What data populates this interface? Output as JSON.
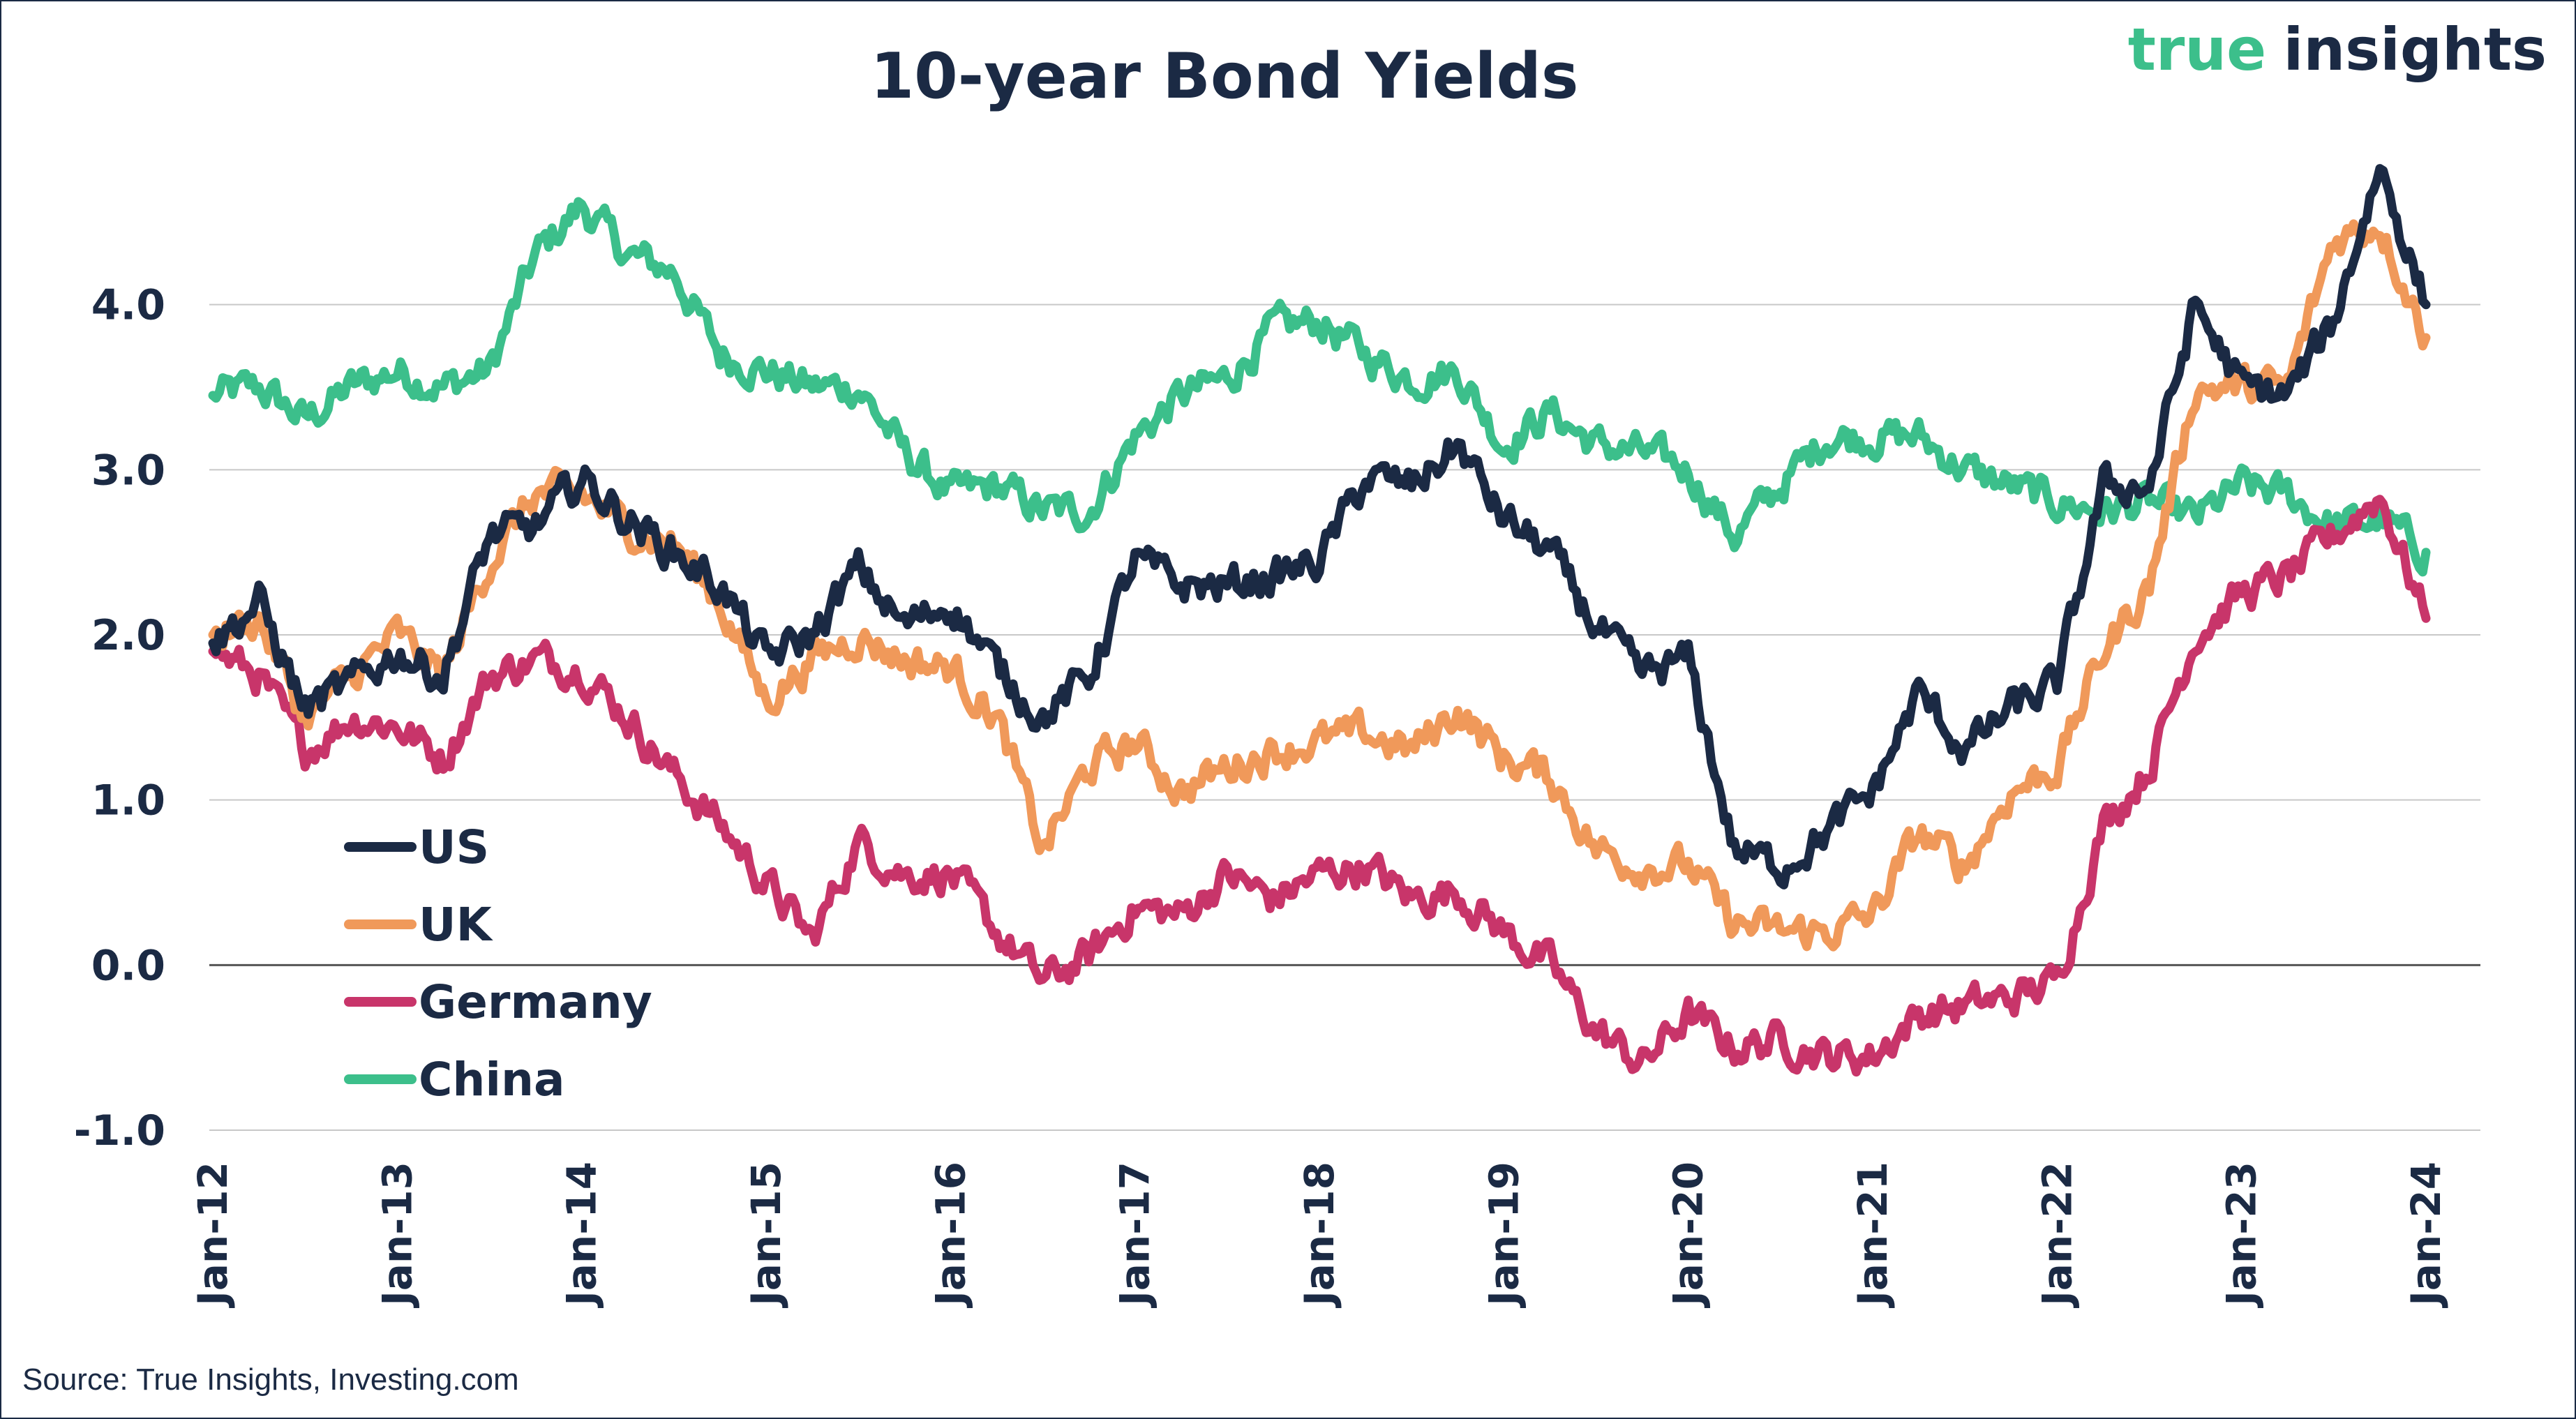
{
  "brand": {
    "part1": "true",
    "part2": "insights"
  },
  "source": "Source: True Insights, Investing.com",
  "chart_data": {
    "type": "line",
    "title": "10-year Bond Yields",
    "xlabel": "",
    "ylabel": "",
    "ylim": [
      -1.0,
      5.0
    ],
    "yticks": [
      -1.0,
      0.0,
      1.0,
      2.0,
      3.0,
      4.0
    ],
    "ytick_labels": [
      "-1.0",
      "0.0",
      "1.0",
      "2.0",
      "3.0",
      "4.0"
    ],
    "xlim": [
      "2012-01",
      "2024-01"
    ],
    "xtick_labels": [
      "Jan-12",
      "Jan-13",
      "Jan-14",
      "Jan-15",
      "Jan-16",
      "Jan-17",
      "Jan-18",
      "Jan-19",
      "Jan-20",
      "Jan-21",
      "Jan-22",
      "Jan-23",
      "Jan-24"
    ],
    "grid": true,
    "legend_position": "bottom-left",
    "x": [
      "2012-01",
      "2012-04",
      "2012-07",
      "2012-10",
      "2013-01",
      "2013-04",
      "2013-07",
      "2013-10",
      "2014-01",
      "2014-04",
      "2014-07",
      "2014-10",
      "2015-01",
      "2015-04",
      "2015-07",
      "2015-10",
      "2016-01",
      "2016-04",
      "2016-07",
      "2016-10",
      "2017-01",
      "2017-04",
      "2017-07",
      "2017-10",
      "2018-01",
      "2018-04",
      "2018-07",
      "2018-10",
      "2019-01",
      "2019-04",
      "2019-07",
      "2019-10",
      "2020-01",
      "2020-04",
      "2020-07",
      "2020-10",
      "2021-01",
      "2021-04",
      "2021-07",
      "2021-10",
      "2022-01",
      "2022-04",
      "2022-07",
      "2022-10",
      "2023-01",
      "2023-04",
      "2023-07",
      "2023-10",
      "2024-01"
    ],
    "series": [
      {
        "name": "US",
        "color": "#1b2a44",
        "values": [
          1.95,
          2.2,
          1.55,
          1.7,
          1.9,
          1.75,
          2.6,
          2.65,
          2.95,
          2.7,
          2.5,
          2.3,
          1.85,
          2.0,
          2.4,
          2.05,
          2.2,
          1.8,
          1.5,
          1.75,
          2.45,
          2.3,
          2.3,
          2.35,
          2.45,
          2.95,
          2.9,
          3.15,
          2.7,
          2.5,
          2.05,
          1.75,
          1.85,
          0.7,
          0.6,
          0.8,
          1.05,
          1.65,
          1.3,
          1.55,
          1.7,
          2.9,
          2.9,
          4.0,
          3.5,
          3.45,
          3.9,
          4.85,
          4.0
        ]
      },
      {
        "name": "UK",
        "color": "#f0995a",
        "values": [
          2.0,
          2.1,
          1.5,
          1.75,
          2.0,
          1.75,
          2.45,
          2.85,
          2.85,
          2.65,
          2.55,
          2.2,
          1.6,
          1.85,
          2.0,
          1.85,
          1.8,
          1.5,
          0.7,
          1.2,
          1.35,
          1.05,
          1.2,
          1.3,
          1.35,
          1.4,
          1.3,
          1.55,
          1.25,
          1.15,
          0.7,
          0.6,
          0.6,
          0.25,
          0.2,
          0.2,
          0.3,
          0.8,
          0.6,
          1.05,
          1.2,
          1.9,
          2.3,
          3.5,
          3.5,
          3.5,
          4.4,
          4.5,
          3.8
        ]
      },
      {
        "name": "Germany",
        "color": "#c8356a",
        "values": [
          1.9,
          1.75,
          1.3,
          1.5,
          1.45,
          1.25,
          1.75,
          1.85,
          1.8,
          1.5,
          1.15,
          0.85,
          0.5,
          0.15,
          0.75,
          0.55,
          0.55,
          0.2,
          -0.1,
          0.05,
          0.35,
          0.3,
          0.55,
          0.4,
          0.55,
          0.6,
          0.4,
          0.45,
          0.2,
          0.0,
          -0.4,
          -0.6,
          -0.3,
          -0.5,
          -0.45,
          -0.55,
          -0.55,
          -0.3,
          -0.25,
          -0.2,
          -0.1,
          0.85,
          1.2,
          2.0,
          2.25,
          2.35,
          2.6,
          2.85,
          2.1
        ]
      },
      {
        "name": "China",
        "color": "#3cbf8b",
        "values": [
          3.45,
          3.5,
          3.3,
          3.5,
          3.6,
          3.5,
          3.6,
          4.3,
          4.6,
          4.3,
          4.2,
          3.7,
          3.6,
          3.5,
          3.5,
          3.1,
          2.85,
          2.9,
          2.75,
          2.75,
          3.2,
          3.45,
          3.55,
          3.85,
          3.9,
          3.7,
          3.55,
          3.6,
          3.15,
          3.35,
          3.15,
          3.1,
          3.0,
          2.6,
          2.9,
          3.2,
          3.2,
          3.2,
          3.0,
          2.9,
          2.8,
          2.75,
          2.8,
          2.7,
          2.9,
          2.85,
          2.65,
          2.7,
          2.5
        ]
      }
    ]
  }
}
